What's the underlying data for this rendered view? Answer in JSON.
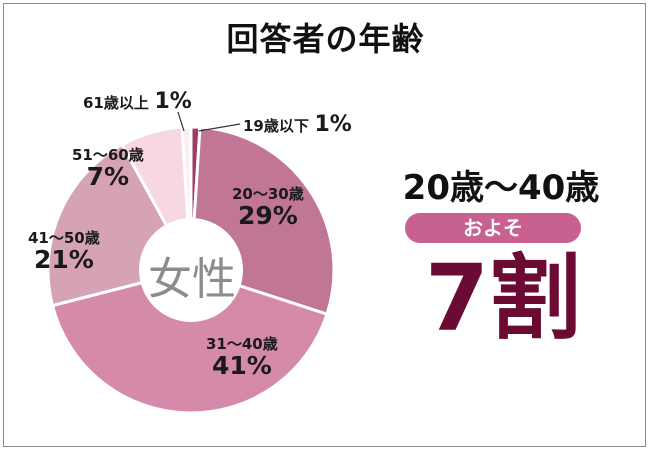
{
  "title": "回答者の年齢",
  "center_label": "女性",
  "summary": {
    "range": "20歳〜40歳",
    "pill": "およそ",
    "value": "7割"
  },
  "colors": {
    "pill_bg": "#c8618f",
    "big_text": "#6b0a33"
  },
  "chart_data": {
    "type": "pie",
    "donut": true,
    "categories": [
      "19歳以下",
      "20〜30歳",
      "31〜40歳",
      "41〜50歳",
      "51〜60歳",
      "61歳以上"
    ],
    "values": [
      1,
      29,
      41,
      21,
      7,
      1
    ],
    "labels": [
      "1%",
      "29%",
      "41%",
      "21%",
      "7%",
      "1%"
    ],
    "colors": [
      "#9b3d63",
      "#c27696",
      "#d48aa8",
      "#d6a3b6",
      "#f6d7e2",
      "#fdeef3"
    ]
  }
}
